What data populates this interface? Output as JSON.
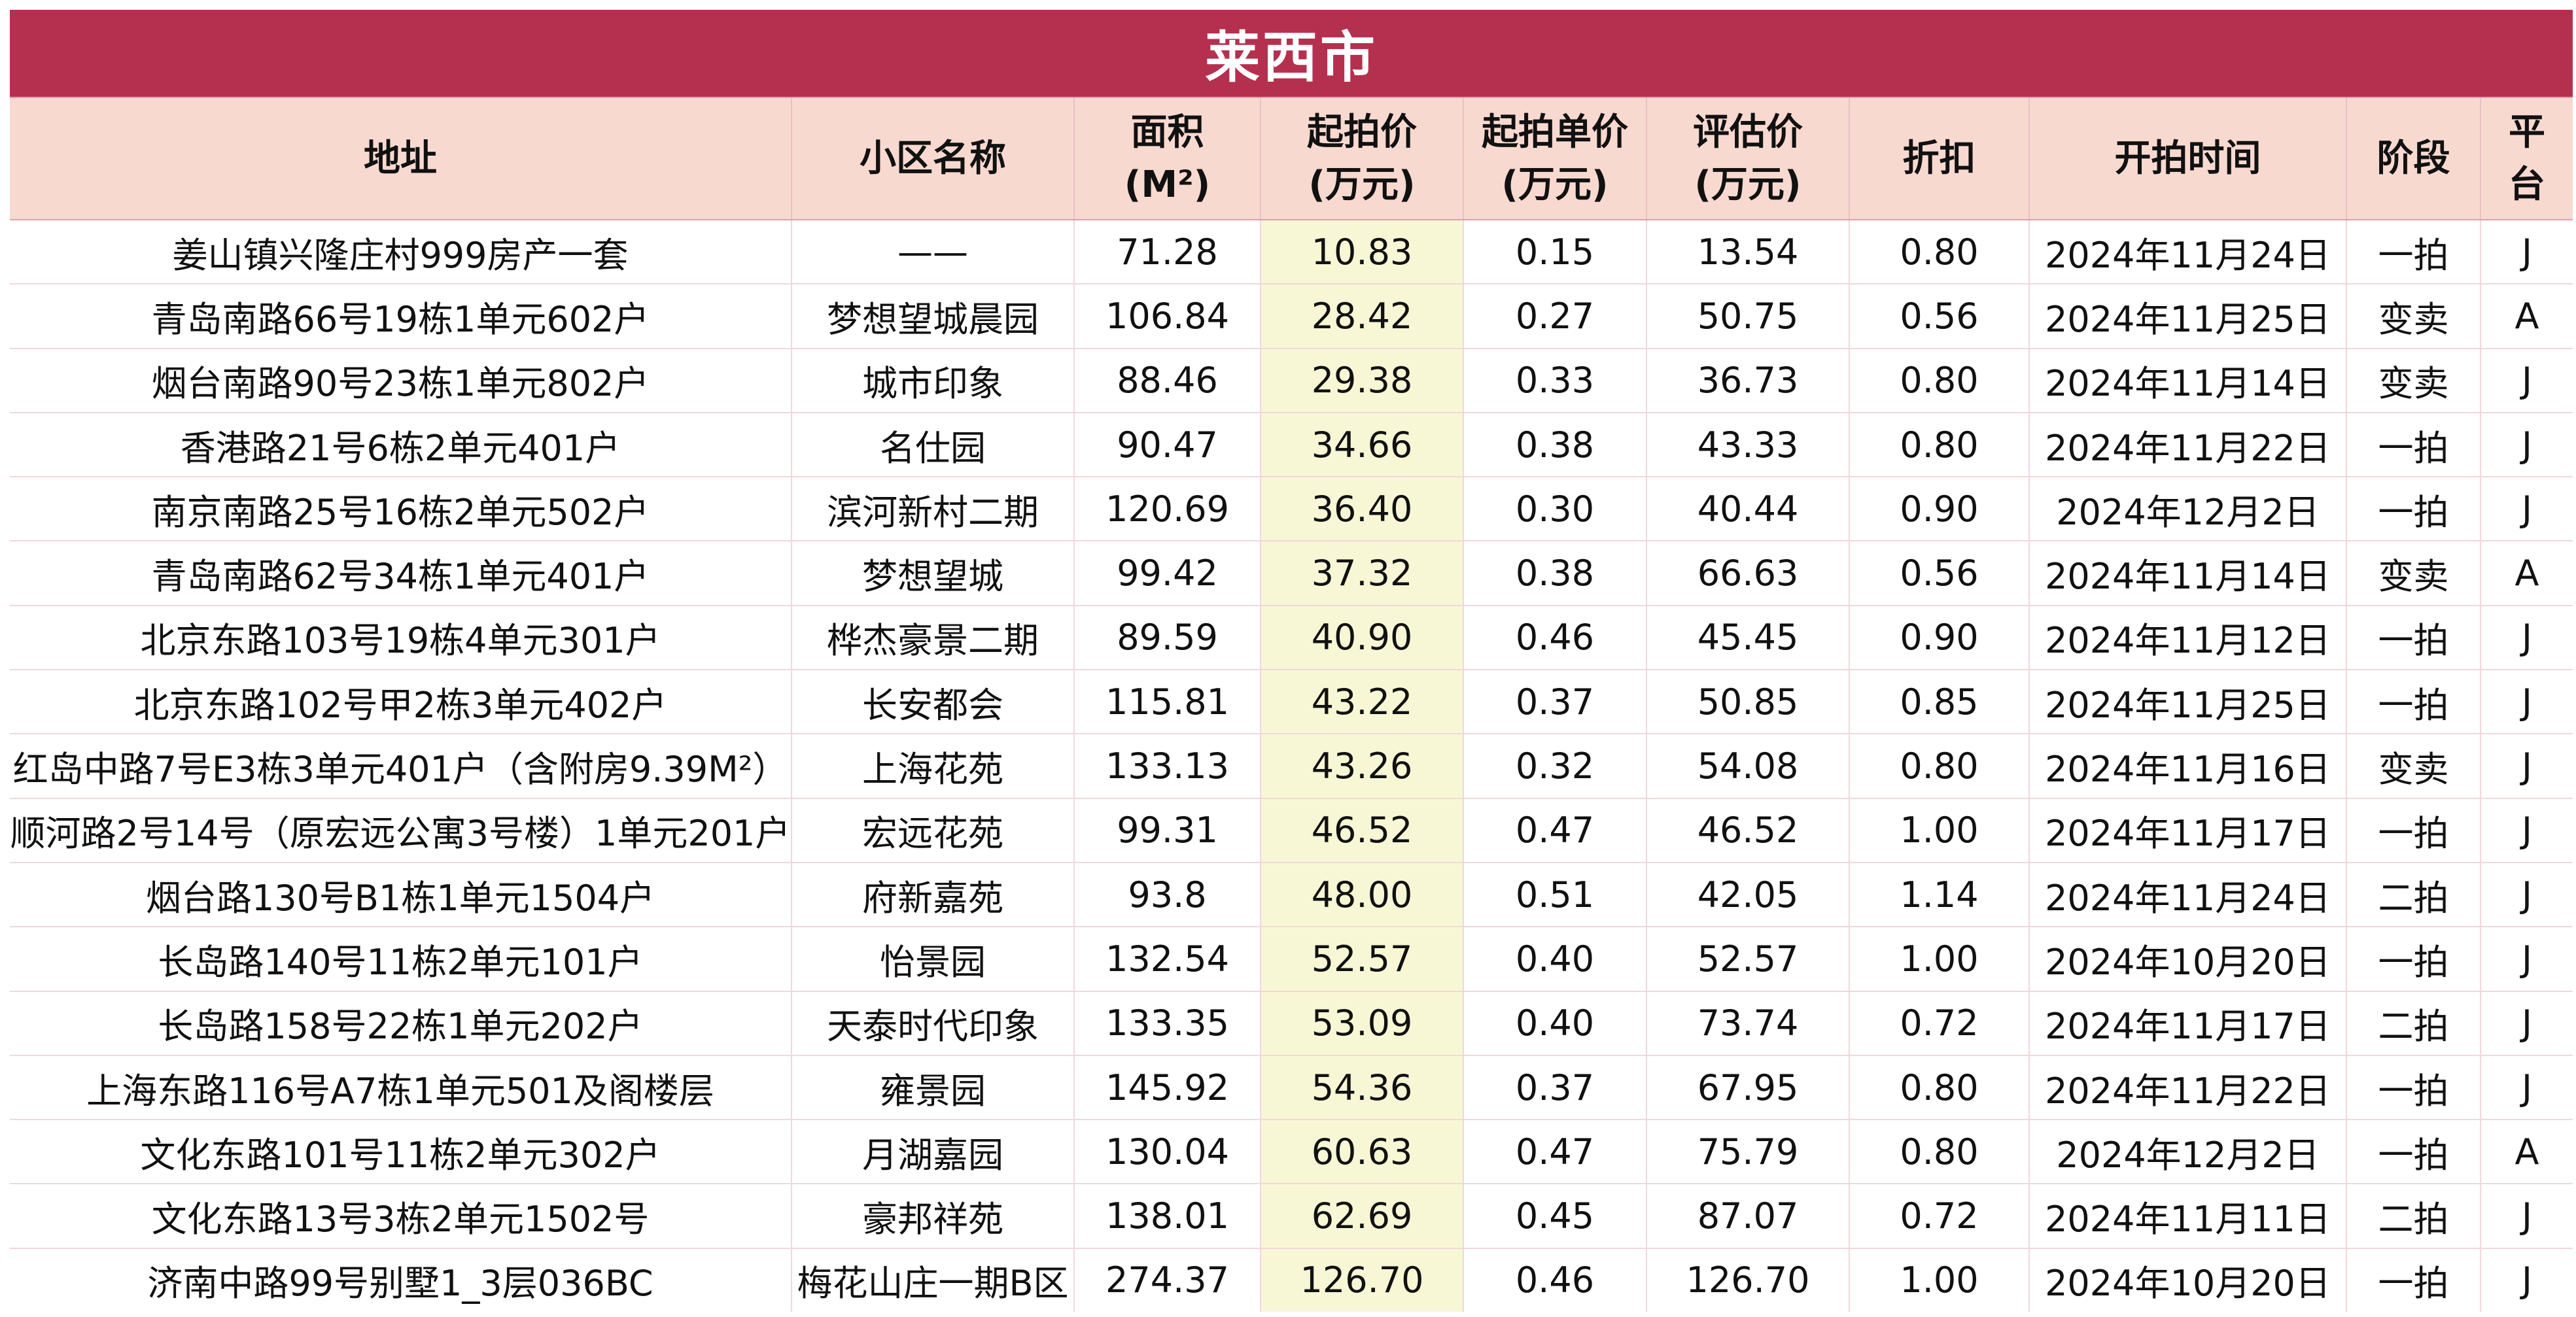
{
  "title": "莱西市",
  "headers": [
    {
      "line1": "地址",
      "line2": ""
    },
    {
      "line1": "小区名称",
      "line2": ""
    },
    {
      "line1": "面积",
      "line2": "(M²)"
    },
    {
      "line1": "起拍价",
      "line2": "(万元)"
    },
    {
      "line1": "起拍单价",
      "line2": "(万元)"
    },
    {
      "line1": "评估价",
      "line2": "(万元)"
    },
    {
      "line1": "折扣",
      "line2": ""
    },
    {
      "line1": "开拍时间",
      "line2": ""
    },
    {
      "line1": "阶段",
      "line2": ""
    },
    {
      "line1": "平",
      "line2": "台"
    }
  ],
  "rows": [
    [
      "姜山镇兴隆庄村999房产一套",
      "——",
      "71.28",
      "10.83",
      "0.15",
      "13.54",
      "0.80",
      "2024年11月24日",
      "一拍",
      "J"
    ],
    [
      "青岛南路66号19栋1单元602户",
      "梦想望城晨园",
      "106.84",
      "28.42",
      "0.27",
      "50.75",
      "0.56",
      "2024年11月25日",
      "变卖",
      "A"
    ],
    [
      "烟台南路90号23栋1单元802户",
      "城市印象",
      "88.46",
      "29.38",
      "0.33",
      "36.73",
      "0.80",
      "2024年11月14日",
      "变卖",
      "J"
    ],
    [
      "香港路21号6栋2单元401户",
      "名仕园",
      "90.47",
      "34.66",
      "0.38",
      "43.33",
      "0.80",
      "2024年11月22日",
      "一拍",
      "J"
    ],
    [
      "南京南路25号16栋2单元502户",
      "滨河新村二期",
      "120.69",
      "36.40",
      "0.30",
      "40.44",
      "0.90",
      "2024年12月2日",
      "一拍",
      "J"
    ],
    [
      "青岛南路62号34栋1单元401户",
      "梦想望城",
      "99.42",
      "37.32",
      "0.38",
      "66.63",
      "0.56",
      "2024年11月14日",
      "变卖",
      "A"
    ],
    [
      "北京东路103号19栋4单元301户",
      "桦杰豪景二期",
      "89.59",
      "40.90",
      "0.46",
      "45.45",
      "0.90",
      "2024年11月12日",
      "一拍",
      "J"
    ],
    [
      "北京东路102号甲2栋3单元402户",
      "长安都会",
      "115.81",
      "43.22",
      "0.37",
      "50.85",
      "0.85",
      "2024年11月25日",
      "一拍",
      "J"
    ],
    [
      "红岛中路7号E3栋3单元401户（含附房9.39M²）",
      "上海花苑",
      "133.13",
      "43.26",
      "0.32",
      "54.08",
      "0.80",
      "2024年11月16日",
      "变卖",
      "J"
    ],
    [
      "顺河路2号14号（原宏远公寓3号楼）1单元201户",
      "宏远花苑",
      "99.31",
      "46.52",
      "0.47",
      "46.52",
      "1.00",
      "2024年11月17日",
      "一拍",
      "J"
    ],
    [
      "烟台路130号B1栋1单元1504户",
      "府新嘉苑",
      "93.8",
      "48.00",
      "0.51",
      "42.05",
      "1.14",
      "2024年11月24日",
      "二拍",
      "J"
    ],
    [
      "长岛路140号11栋2单元101户",
      "怡景园",
      "132.54",
      "52.57",
      "0.40",
      "52.57",
      "1.00",
      "2024年10月20日",
      "一拍",
      "J"
    ],
    [
      "长岛路158号22栋1单元202户",
      "天泰时代印象",
      "133.35",
      "53.09",
      "0.40",
      "73.74",
      "0.72",
      "2024年11月17日",
      "二拍",
      "J"
    ],
    [
      "上海东路116号A7栋1单元501及阁楼层",
      "雍景园",
      "145.92",
      "54.36",
      "0.37",
      "67.95",
      "0.80",
      "2024年11月22日",
      "一拍",
      "J"
    ],
    [
      "文化东路101号11栋2单元302户",
      "月湖嘉园",
      "130.04",
      "60.63",
      "0.47",
      "75.79",
      "0.80",
      "2024年12月2日",
      "一拍",
      "A"
    ],
    [
      "文化东路13号3栋2单元1502号",
      "豪邦祥苑",
      "138.01",
      "62.69",
      "0.45",
      "87.07",
      "0.72",
      "2024年11月11日",
      "二拍",
      "J"
    ],
    [
      "济南中路99号别墅1_3层036BC",
      "梅花山庄一期B区",
      "274.37",
      "126.70",
      "0.46",
      "126.70",
      "1.00",
      "2024年10月20日",
      "一拍",
      "J"
    ]
  ],
  "colors": {
    "title_bg": "#b5304f",
    "header_bg": "#f8d9d0",
    "price_col_bg": "#f7f7d6"
  }
}
